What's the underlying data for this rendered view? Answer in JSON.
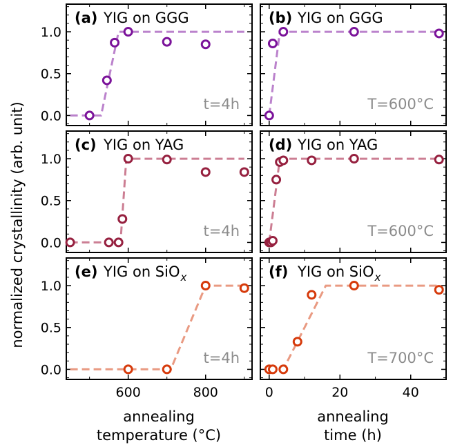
{
  "colors": {
    "ggg": "#7b139a",
    "ggg_fit": "#bb82cc",
    "yag": "#96203f",
    "yag_fit": "#cc7e93",
    "sio": "#d63a0b",
    "sio_fit": "#e99a82"
  },
  "axis_labels": {
    "y": "normalized crystallinity (arb. unit)",
    "x_left_line1": "annealing",
    "x_left_line2": "temperature (°C)",
    "x_right_line1": "annealing",
    "x_right_line2": "time (h)"
  },
  "chart_data": [
    {
      "type": "scatter",
      "panel": "(a)",
      "title": "YIG on GGG",
      "annotation": "t=4h",
      "xlim": [
        440,
        920
      ],
      "ylim": [
        -0.12,
        1.33
      ],
      "x_ticks": [],
      "y_ticks": [
        "0.0",
        "0.5",
        "1.0"
      ],
      "series": [
        {
          "x": [
            500,
            545,
            565,
            600,
            700,
            800
          ],
          "y": [
            0.0,
            0.42,
            0.87,
            1.0,
            0.88,
            0.85
          ]
        },
        {
          "type": "fit",
          "x": [
            450,
            530,
            575,
            900
          ],
          "y": [
            0.0,
            0.0,
            1.0,
            1.0
          ]
        }
      ]
    },
    {
      "type": "scatter",
      "panel": "(b)",
      "title": "YIG on GGG",
      "annotation": "T=600°C",
      "xlim": [
        -2.5,
        50
      ],
      "ylim": [
        -0.12,
        1.33
      ],
      "x_ticks": [],
      "y_ticks": [],
      "series": [
        {
          "x": [
            0,
            1,
            4,
            24,
            48
          ],
          "y": [
            0.0,
            0.86,
            1.0,
            1.0,
            0.98
          ]
        },
        {
          "type": "fit",
          "x": [
            0,
            3,
            48
          ],
          "y": [
            0.0,
            1.0,
            1.0
          ]
        }
      ]
    },
    {
      "type": "scatter",
      "panel": "(c)",
      "title": "YIG on YAG",
      "annotation": "t=4h",
      "xlim": [
        440,
        920
      ],
      "ylim": [
        -0.12,
        1.33
      ],
      "x_ticks": [],
      "y_ticks": [
        "0.0",
        "0.5",
        "1.0"
      ],
      "series": [
        {
          "x": [
            450,
            550,
            575,
            585,
            600,
            700,
            800,
            900
          ],
          "y": [
            0.0,
            0.0,
            0.0,
            0.28,
            1.0,
            0.99,
            0.84,
            0.84
          ]
        },
        {
          "type": "fit",
          "x": [
            450,
            580,
            595,
            900
          ],
          "y": [
            0.0,
            0.0,
            1.0,
            1.0
          ]
        }
      ]
    },
    {
      "type": "scatter",
      "panel": "(d)",
      "title": "YIG on YAG",
      "annotation": "T=600°C",
      "xlim": [
        -2.5,
        50
      ],
      "ylim": [
        -0.12,
        1.33
      ],
      "x_ticks": [],
      "y_ticks": [],
      "series": [
        {
          "x": [
            0,
            0.5,
            1,
            2,
            3,
            4,
            12,
            24,
            48
          ],
          "y": [
            0.0,
            0.0,
            0.02,
            0.75,
            0.96,
            0.98,
            0.98,
            1.0,
            0.99
          ]
        },
        {
          "type": "fit",
          "x": [
            0,
            3,
            48
          ],
          "y": [
            0.0,
            1.0,
            1.0
          ]
        }
      ]
    },
    {
      "type": "scatter",
      "panel": "(e)",
      "title_main": "YIG on SiO",
      "title_sub": "x",
      "annotation": "t=4h",
      "xlim": [
        440,
        920
      ],
      "ylim": [
        -0.12,
        1.33
      ],
      "x_ticks": [
        "600",
        "800"
      ],
      "y_ticks": [
        "0.0",
        "0.5",
        "1.0"
      ],
      "series": [
        {
          "x": [
            600,
            700,
            800,
            900
          ],
          "y": [
            0.0,
            0.0,
            1.0,
            0.97
          ]
        },
        {
          "type": "fit",
          "x": [
            450,
            710,
            800,
            900
          ],
          "y": [
            0.0,
            0.0,
            1.0,
            1.0
          ]
        }
      ]
    },
    {
      "type": "scatter",
      "panel": "(f)",
      "title_main": "YIG on SiO",
      "title_sub": "x",
      "annotation": "T=700°C",
      "xlim": [
        -2.5,
        50
      ],
      "ylim": [
        -0.12,
        1.33
      ],
      "x_ticks": [
        "0",
        "20",
        "40"
      ],
      "y_ticks": [],
      "series": [
        {
          "x": [
            0,
            1,
            4,
            8,
            12,
            24,
            48
          ],
          "y": [
            0.0,
            0.0,
            0.0,
            0.33,
            0.89,
            1.0,
            0.95
          ]
        },
        {
          "type": "fit",
          "x": [
            0,
            4,
            16,
            48
          ],
          "y": [
            0.0,
            0.0,
            1.0,
            1.0
          ]
        }
      ]
    }
  ]
}
